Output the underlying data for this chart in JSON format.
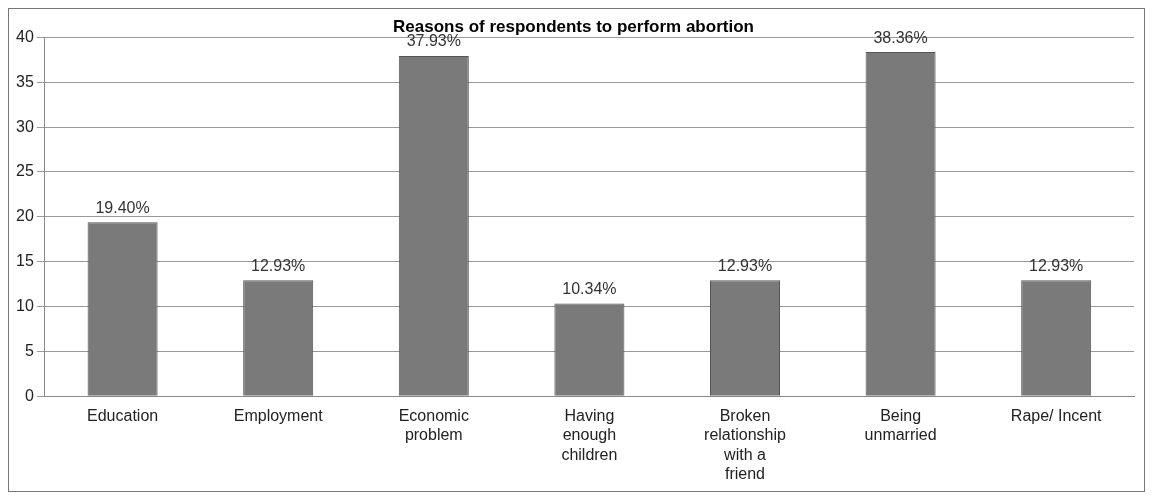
{
  "chart_data": {
    "type": "bar",
    "title": "Reasons of respondents to perform abortion",
    "categories": [
      "Education",
      "Employment",
      "Economic problem",
      "Having enough children",
      "Broken relationship with a friend",
      "Being unmarried",
      "Rape/ Incent"
    ],
    "values": [
      19.4,
      12.93,
      37.93,
      10.34,
      12.93,
      38.36,
      12.93
    ],
    "value_labels": [
      "19.40%",
      "12.93%",
      "37.93%",
      "10.34%",
      "12.93%",
      "38.36%",
      "12.93%"
    ],
    "color": "#7a7a7a",
    "ylim": [
      0,
      40
    ],
    "yticks": [
      0,
      5,
      10,
      15,
      20,
      25,
      30,
      35,
      40
    ],
    "grid": "y",
    "legend": false
  }
}
